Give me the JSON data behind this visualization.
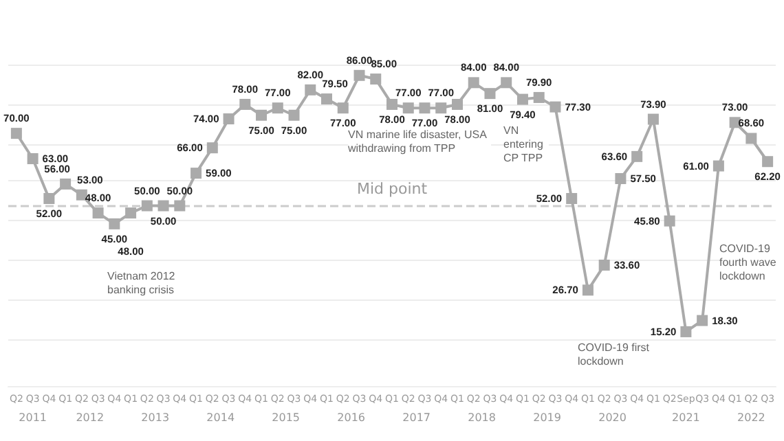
{
  "chart_data": {
    "type": "line",
    "categories": [
      "Q2",
      "Q3",
      "Q4",
      "Q1",
      "Q2",
      "Q3",
      "Q4",
      "Q1",
      "Q2",
      "Q3",
      "Q4",
      "Q1",
      "Q2",
      "Q3",
      "Q4",
      "Q1",
      "Q2",
      "Q3",
      "Q4",
      "Q1",
      "Q2",
      "Q3",
      "Q4",
      "Q1",
      "Q2",
      "Q3",
      "Q4",
      "Q1",
      "Q2",
      "Q3",
      "Q4",
      "Q1",
      "Q2",
      "Q3",
      "Q4",
      "Q1",
      "Q2",
      "Q3",
      "Q4",
      "Q1",
      "Q2",
      "Sep",
      "Q3",
      "Q4",
      "Q1",
      "Q2",
      "Q3"
    ],
    "series": [
      {
        "color": "#aaaaaa",
        "values": [
          70,
          63,
          52,
          56,
          53,
          48,
          45,
          48,
          50,
          50,
          50,
          59,
          66,
          74,
          78,
          75,
          77,
          75,
          82,
          79.5,
          77,
          86,
          85,
          78,
          77,
          77,
          77,
          78,
          84,
          81,
          84,
          79.4,
          79.9,
          77.3,
          52,
          26.7,
          33.6,
          57.5,
          63.6,
          73.9,
          45.8,
          15.2,
          18.3,
          61,
          73,
          68.6,
          62.2
        ],
        "value_labels": [
          "70.00",
          "63.00",
          "52.00",
          "56.00",
          "53.00",
          "48.00",
          "45.00",
          "48.00",
          "50.00",
          "50.00",
          "50.00",
          "59.00",
          "66.00",
          "74.00",
          "78.00",
          "75.00",
          "77.00",
          "75.00",
          "82.00",
          "79.50",
          "77.00",
          "86.00",
          "85.00",
          "78.00",
          "77.00",
          "77.00",
          "77.00",
          "78.00",
          "84.00",
          "81.00",
          "84.00",
          "79.40",
          "79.90",
          "77.30",
          "52.00",
          "26.70",
          "33.60",
          "57.50",
          "63.60",
          "73.90",
          "45.80",
          "15.20",
          "18.30",
          "61.00",
          "73.00",
          "68.60",
          "62.20"
        ]
      }
    ],
    "yticks": [
      {
        "value": 13,
        "label": null
      },
      {
        "value": 24,
        "label": null
      },
      {
        "value": 35,
        "label": null
      },
      {
        "value": 46,
        "label": null
      },
      {
        "value": 57,
        "label": null
      },
      {
        "value": 67,
        "label": null
      },
      {
        "value": 78,
        "label": null
      },
      {
        "value": 89,
        "label": null
      }
    ],
    "tick_labels": "x",
    "grid": "y",
    "marker": "square",
    "line_style": "solid",
    "ref_lines": [
      {
        "axis": "y",
        "value": 50,
        "label": "Mid point",
        "color": "#cccccc",
        "line_style": "dashed"
      }
    ],
    "annotations": [
      "Vietnam 2012 banking crisis",
      "VN marine life disaster, USA withdrawing from TPP",
      "VN entering CP TPP",
      "COVID-19 first lockdown",
      "COVID-19 fourth wave lockdown",
      "2011",
      "2012",
      "2013",
      "2014",
      "2015",
      "2016",
      "2017",
      "2018",
      "2019",
      "2020",
      "2021",
      "2022"
    ]
  }
}
